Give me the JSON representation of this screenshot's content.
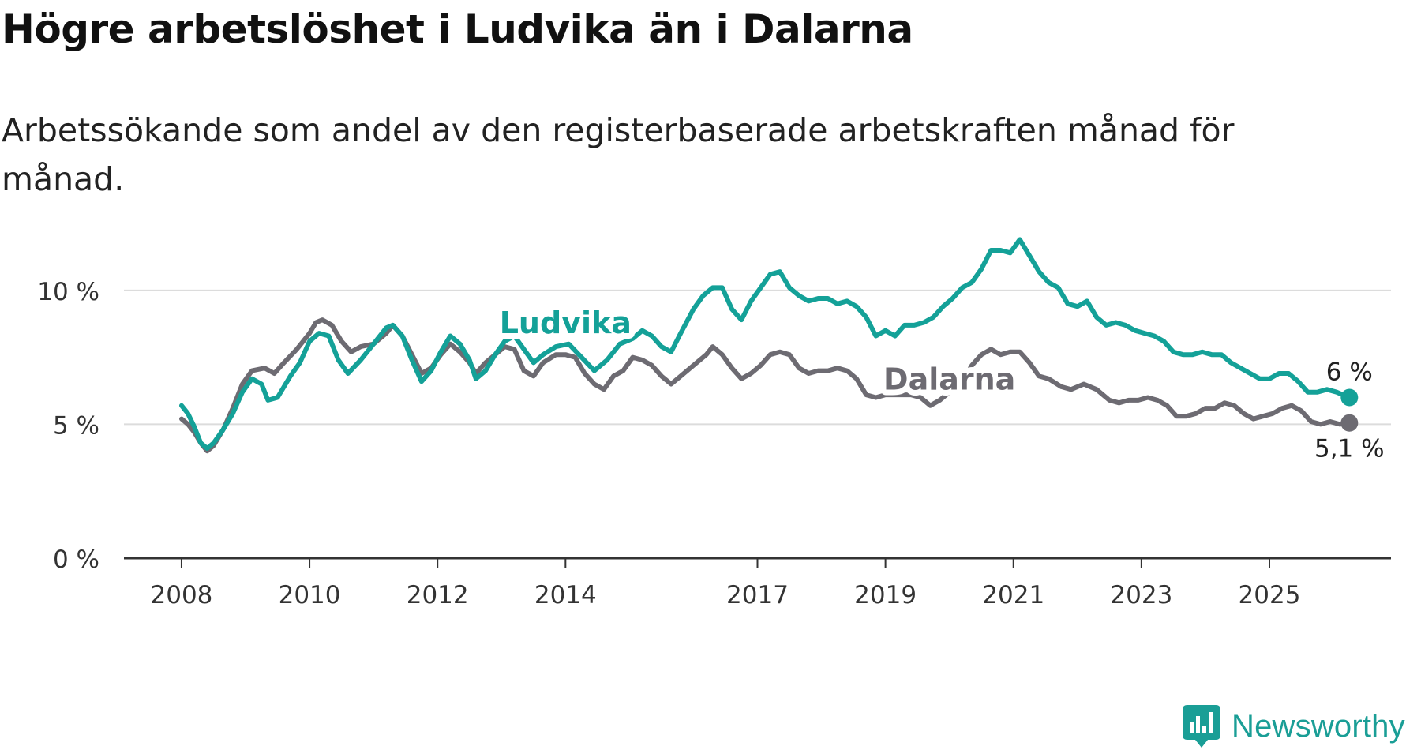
{
  "title": "Högre arbetslöshet i Ludvika än i Dalarna",
  "subtitle": "Arbetssökande som andel av den registerbaserade arbetskraften månad för månad.",
  "brand": {
    "name": "Newsworthy",
    "color": "#1a9e96"
  },
  "chart_data": {
    "type": "line",
    "title": "Högre arbetslöshet i Ludvika än i Dalarna",
    "xlabel": "",
    "ylabel": "",
    "ylim": [
      0,
      12
    ],
    "xlim": [
      2007.1,
      2026.9
    ],
    "grid": true,
    "y_ticks": [
      {
        "value": 0,
        "label": "0 %"
      },
      {
        "value": 5,
        "label": "5 %"
      },
      {
        "value": 10,
        "label": "10 %"
      }
    ],
    "x_ticks": [
      {
        "value": 2008.0,
        "label": "2008"
      },
      {
        "value": 2010.0,
        "label": "2010"
      },
      {
        "value": 2012.0,
        "label": "2012"
      },
      {
        "value": 2014.0,
        "label": "2014"
      },
      {
        "value": 2017.0,
        "label": "2017"
      },
      {
        "value": 2019.0,
        "label": "2019"
      },
      {
        "value": 2021.0,
        "label": "2021"
      },
      {
        "value": 2023.0,
        "label": "2023"
      },
      {
        "value": 2025.0,
        "label": "2025"
      }
    ],
    "series": [
      {
        "name": "Dalarna",
        "color": "#6d6b72",
        "label_at": [
          2020.0,
          6.3
        ],
        "end_label": "5,1 %",
        "end_label_position": "below",
        "points": [
          [
            2008.0,
            5.2
          ],
          [
            2008.1,
            5.0
          ],
          [
            2008.2,
            4.7
          ],
          [
            2008.3,
            4.3
          ],
          [
            2008.4,
            4.0
          ],
          [
            2008.5,
            4.2
          ],
          [
            2008.65,
            4.8
          ],
          [
            2008.8,
            5.6
          ],
          [
            2008.95,
            6.5
          ],
          [
            2009.1,
            7.0
          ],
          [
            2009.3,
            7.1
          ],
          [
            2009.45,
            6.9
          ],
          [
            2009.6,
            7.3
          ],
          [
            2009.8,
            7.8
          ],
          [
            2010.0,
            8.4
          ],
          [
            2010.1,
            8.8
          ],
          [
            2010.2,
            8.9
          ],
          [
            2010.35,
            8.7
          ],
          [
            2010.5,
            8.1
          ],
          [
            2010.65,
            7.7
          ],
          [
            2010.8,
            7.9
          ],
          [
            2011.0,
            8.0
          ],
          [
            2011.2,
            8.4
          ],
          [
            2011.3,
            8.7
          ],
          [
            2011.45,
            8.3
          ],
          [
            2011.6,
            7.6
          ],
          [
            2011.75,
            6.9
          ],
          [
            2011.9,
            7.1
          ],
          [
            2012.05,
            7.6
          ],
          [
            2012.2,
            8.0
          ],
          [
            2012.35,
            7.7
          ],
          [
            2012.5,
            7.3
          ],
          [
            2012.6,
            6.9
          ],
          [
            2012.75,
            7.3
          ],
          [
            2012.9,
            7.6
          ],
          [
            2013.05,
            7.9
          ],
          [
            2013.2,
            7.8
          ],
          [
            2013.35,
            7.0
          ],
          [
            2013.5,
            6.8
          ],
          [
            2013.65,
            7.3
          ],
          [
            2013.85,
            7.6
          ],
          [
            2014.0,
            7.6
          ],
          [
            2014.15,
            7.5
          ],
          [
            2014.3,
            6.9
          ],
          [
            2014.45,
            6.5
          ],
          [
            2014.6,
            6.3
          ],
          [
            2014.75,
            6.8
          ],
          [
            2014.9,
            7.0
          ],
          [
            2015.05,
            7.5
          ],
          [
            2015.2,
            7.4
          ],
          [
            2015.35,
            7.2
          ],
          [
            2015.5,
            6.8
          ],
          [
            2015.65,
            6.5
          ],
          [
            2015.8,
            6.8
          ],
          [
            2016.0,
            7.2
          ],
          [
            2016.2,
            7.6
          ],
          [
            2016.3,
            7.9
          ],
          [
            2016.45,
            7.6
          ],
          [
            2016.6,
            7.1
          ],
          [
            2016.75,
            6.7
          ],
          [
            2016.9,
            6.9
          ],
          [
            2017.05,
            7.2
          ],
          [
            2017.2,
            7.6
          ],
          [
            2017.35,
            7.7
          ],
          [
            2017.5,
            7.6
          ],
          [
            2017.65,
            7.1
          ],
          [
            2017.8,
            6.9
          ],
          [
            2017.95,
            7.0
          ],
          [
            2018.1,
            7.0
          ],
          [
            2018.25,
            7.1
          ],
          [
            2018.4,
            7.0
          ],
          [
            2018.55,
            6.7
          ],
          [
            2018.7,
            6.1
          ],
          [
            2018.85,
            6.0
          ],
          [
            2019.0,
            6.1
          ],
          [
            2019.2,
            6.1
          ],
          [
            2019.4,
            6.1
          ],
          [
            2019.55,
            6.0
          ],
          [
            2019.7,
            5.7
          ],
          [
            2019.85,
            5.9
          ],
          [
            2020.0,
            6.2
          ],
          [
            2020.2,
            6.6
          ],
          [
            2020.35,
            7.2
          ],
          [
            2020.5,
            7.6
          ],
          [
            2020.65,
            7.8
          ],
          [
            2020.8,
            7.6
          ],
          [
            2020.95,
            7.7
          ],
          [
            2021.1,
            7.7
          ],
          [
            2021.25,
            7.3
          ],
          [
            2021.4,
            6.8
          ],
          [
            2021.55,
            6.7
          ],
          [
            2021.75,
            6.4
          ],
          [
            2021.9,
            6.3
          ],
          [
            2022.1,
            6.5
          ],
          [
            2022.3,
            6.3
          ],
          [
            2022.5,
            5.9
          ],
          [
            2022.65,
            5.8
          ],
          [
            2022.8,
            5.9
          ],
          [
            2022.95,
            5.9
          ],
          [
            2023.1,
            6.0
          ],
          [
            2023.25,
            5.9
          ],
          [
            2023.4,
            5.7
          ],
          [
            2023.55,
            5.3
          ],
          [
            2023.7,
            5.3
          ],
          [
            2023.85,
            5.4
          ],
          [
            2024.0,
            5.6
          ],
          [
            2024.15,
            5.6
          ],
          [
            2024.3,
            5.8
          ],
          [
            2024.45,
            5.7
          ],
          [
            2024.6,
            5.4
          ],
          [
            2024.75,
            5.2
          ],
          [
            2024.9,
            5.3
          ],
          [
            2025.05,
            5.4
          ],
          [
            2025.2,
            5.6
          ],
          [
            2025.35,
            5.7
          ],
          [
            2025.5,
            5.5
          ],
          [
            2025.65,
            5.1
          ],
          [
            2025.8,
            5.0
          ],
          [
            2025.95,
            5.1
          ],
          [
            2026.1,
            5.0
          ],
          [
            2026.25,
            5.05
          ]
        ]
      },
      {
        "name": "Ludvika",
        "color": "#14a198",
        "label_at": [
          2014.0,
          8.4
        ],
        "end_label": "6 %",
        "end_label_position": "above",
        "points": [
          [
            2008.0,
            5.7
          ],
          [
            2008.1,
            5.4
          ],
          [
            2008.2,
            4.9
          ],
          [
            2008.3,
            4.3
          ],
          [
            2008.4,
            4.1
          ],
          [
            2008.5,
            4.3
          ],
          [
            2008.65,
            4.8
          ],
          [
            2008.8,
            5.4
          ],
          [
            2008.95,
            6.2
          ],
          [
            2009.1,
            6.7
          ],
          [
            2009.25,
            6.5
          ],
          [
            2009.35,
            5.9
          ],
          [
            2009.5,
            6.0
          ],
          [
            2009.7,
            6.8
          ],
          [
            2009.85,
            7.3
          ],
          [
            2010.0,
            8.1
          ],
          [
            2010.15,
            8.4
          ],
          [
            2010.3,
            8.3
          ],
          [
            2010.45,
            7.4
          ],
          [
            2010.6,
            6.9
          ],
          [
            2010.8,
            7.4
          ],
          [
            2011.0,
            8.0
          ],
          [
            2011.2,
            8.6
          ],
          [
            2011.3,
            8.7
          ],
          [
            2011.45,
            8.3
          ],
          [
            2011.6,
            7.4
          ],
          [
            2011.75,
            6.6
          ],
          [
            2011.9,
            7.0
          ],
          [
            2012.05,
            7.7
          ],
          [
            2012.2,
            8.3
          ],
          [
            2012.35,
            8.0
          ],
          [
            2012.5,
            7.4
          ],
          [
            2012.6,
            6.7
          ],
          [
            2012.75,
            7.0
          ],
          [
            2012.9,
            7.6
          ],
          [
            2013.05,
            8.1
          ],
          [
            2013.2,
            8.3
          ],
          [
            2013.35,
            7.8
          ],
          [
            2013.5,
            7.3
          ],
          [
            2013.65,
            7.6
          ],
          [
            2013.85,
            7.9
          ],
          [
            2014.05,
            8.0
          ],
          [
            2014.25,
            7.5
          ],
          [
            2014.45,
            7.0
          ],
          [
            2014.65,
            7.4
          ],
          [
            2014.85,
            8.0
          ],
          [
            2015.05,
            8.2
          ],
          [
            2015.2,
            8.5
          ],
          [
            2015.35,
            8.3
          ],
          [
            2015.5,
            7.9
          ],
          [
            2015.65,
            7.7
          ],
          [
            2015.8,
            8.4
          ],
          [
            2016.0,
            9.3
          ],
          [
            2016.15,
            9.8
          ],
          [
            2016.3,
            10.1
          ],
          [
            2016.45,
            10.1
          ],
          [
            2016.6,
            9.3
          ],
          [
            2016.75,
            8.9
          ],
          [
            2016.9,
            9.6
          ],
          [
            2017.05,
            10.1
          ],
          [
            2017.2,
            10.6
          ],
          [
            2017.35,
            10.7
          ],
          [
            2017.5,
            10.1
          ],
          [
            2017.65,
            9.8
          ],
          [
            2017.8,
            9.6
          ],
          [
            2017.95,
            9.7
          ],
          [
            2018.1,
            9.7
          ],
          [
            2018.25,
            9.5
          ],
          [
            2018.4,
            9.6
          ],
          [
            2018.55,
            9.4
          ],
          [
            2018.7,
            9.0
          ],
          [
            2018.85,
            8.3
          ],
          [
            2019.0,
            8.5
          ],
          [
            2019.15,
            8.3
          ],
          [
            2019.3,
            8.7
          ],
          [
            2019.45,
            8.7
          ],
          [
            2019.6,
            8.8
          ],
          [
            2019.75,
            9.0
          ],
          [
            2019.9,
            9.4
          ],
          [
            2020.05,
            9.7
          ],
          [
            2020.2,
            10.1
          ],
          [
            2020.35,
            10.3
          ],
          [
            2020.5,
            10.8
          ],
          [
            2020.65,
            11.5
          ],
          [
            2020.8,
            11.5
          ],
          [
            2020.95,
            11.4
          ],
          [
            2021.1,
            11.9
          ],
          [
            2021.25,
            11.3
          ],
          [
            2021.4,
            10.7
          ],
          [
            2021.55,
            10.3
          ],
          [
            2021.7,
            10.1
          ],
          [
            2021.85,
            9.5
          ],
          [
            2022.0,
            9.4
          ],
          [
            2022.15,
            9.6
          ],
          [
            2022.3,
            9.0
          ],
          [
            2022.45,
            8.7
          ],
          [
            2022.6,
            8.8
          ],
          [
            2022.75,
            8.7
          ],
          [
            2022.9,
            8.5
          ],
          [
            2023.05,
            8.4
          ],
          [
            2023.2,
            8.3
          ],
          [
            2023.35,
            8.1
          ],
          [
            2023.5,
            7.7
          ],
          [
            2023.65,
            7.6
          ],
          [
            2023.8,
            7.6
          ],
          [
            2023.95,
            7.7
          ],
          [
            2024.1,
            7.6
          ],
          [
            2024.25,
            7.6
          ],
          [
            2024.4,
            7.3
          ],
          [
            2024.55,
            7.1
          ],
          [
            2024.7,
            6.9
          ],
          [
            2024.85,
            6.7
          ],
          [
            2025.0,
            6.7
          ],
          [
            2025.15,
            6.9
          ],
          [
            2025.3,
            6.9
          ],
          [
            2025.45,
            6.6
          ],
          [
            2025.6,
            6.2
          ],
          [
            2025.75,
            6.2
          ],
          [
            2025.9,
            6.3
          ],
          [
            2026.05,
            6.2
          ],
          [
            2026.25,
            6.0
          ]
        ]
      }
    ]
  }
}
